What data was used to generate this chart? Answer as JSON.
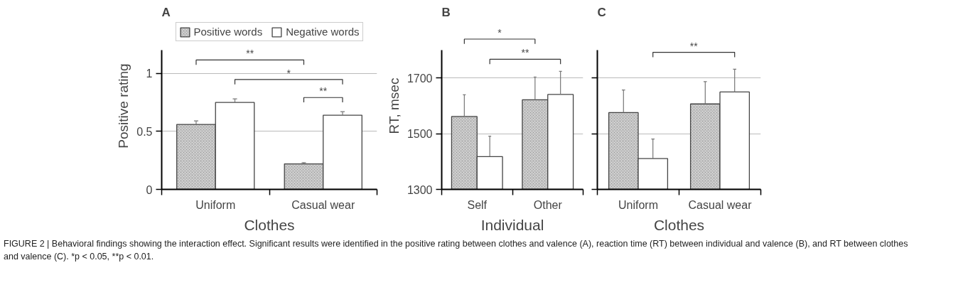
{
  "chart_data": [
    {
      "type": "bar",
      "title": "A",
      "xlabel": "Clothes",
      "ylabel": "Positive rating",
      "categories": [
        "Uniform",
        "Casual wear"
      ],
      "series": [
        {
          "name": "Positive words",
          "color": "#d4d4d4",
          "values": [
            0.56,
            0.22
          ],
          "errors": [
            [
              0.56,
              0.59
            ],
            [
              0.22,
              0.23
            ]
          ]
        },
        {
          "name": "Negative words",
          "color": "#ffffff",
          "values": [
            0.75,
            0.64
          ],
          "errors": [
            [
              0.75,
              0.78
            ],
            [
              0.64,
              0.67
            ]
          ]
        }
      ],
      "ylim": [
        0,
        1.2
      ],
      "yticks": [
        0,
        0.5,
        1
      ],
      "grid": "y",
      "legend": "top",
      "annotations": [
        "**",
        "*",
        "**",
        "FIGURE 2 | Behavioral findings showing the interaction effect. Significant results were identified in the positive rating between clothes and valence (A), reaction time (RT) between individual and valence (B), and RT between clothes and valence (C). *p < 0.05, **p < 0.01."
      ]
    },
    {
      "type": "bar",
      "title": "B",
      "xlabel": "Individual",
      "ylabel": "RT, msec",
      "categories": [
        "Self",
        "Other"
      ],
      "series": [
        {
          "color": "#d4d4d4",
          "values": [
            1562,
            1622
          ],
          "errors": [
            [
              1562,
              1640
            ],
            [
              1622,
              1704
            ]
          ]
        },
        {
          "color": "#ffffff",
          "values": [
            1418,
            1641
          ],
          "errors": [
            [
              1418,
              1491
            ],
            [
              1641,
              1724
            ]
          ]
        }
      ],
      "ylim": [
        1300,
        1800
      ],
      "yticks": [
        1300,
        1500,
        1700
      ],
      "grid": "y",
      "annotations": [
        "*",
        "**"
      ]
    },
    {
      "type": "bar",
      "title": "C",
      "xlabel": "Clothes",
      "categories": [
        "Uniform",
        "Casual wear"
      ],
      "series": [
        {
          "color": "#d4d4d4",
          "values": [
            1576,
            1607
          ],
          "errors": [
            [
              1576,
              1657
            ],
            [
              1607,
              1687
            ]
          ]
        },
        {
          "color": "#ffffff",
          "values": [
            1411,
            1650
          ],
          "errors": [
            [
              1411,
              1481
            ],
            [
              1650,
              1732
            ]
          ]
        }
      ],
      "ylim": [
        1300,
        1800
      ],
      "yticks": [
        1300,
        1500,
        1700
      ],
      "grid": "y",
      "tick_labels": "x",
      "annotations": [
        "**"
      ]
    }
  ]
}
